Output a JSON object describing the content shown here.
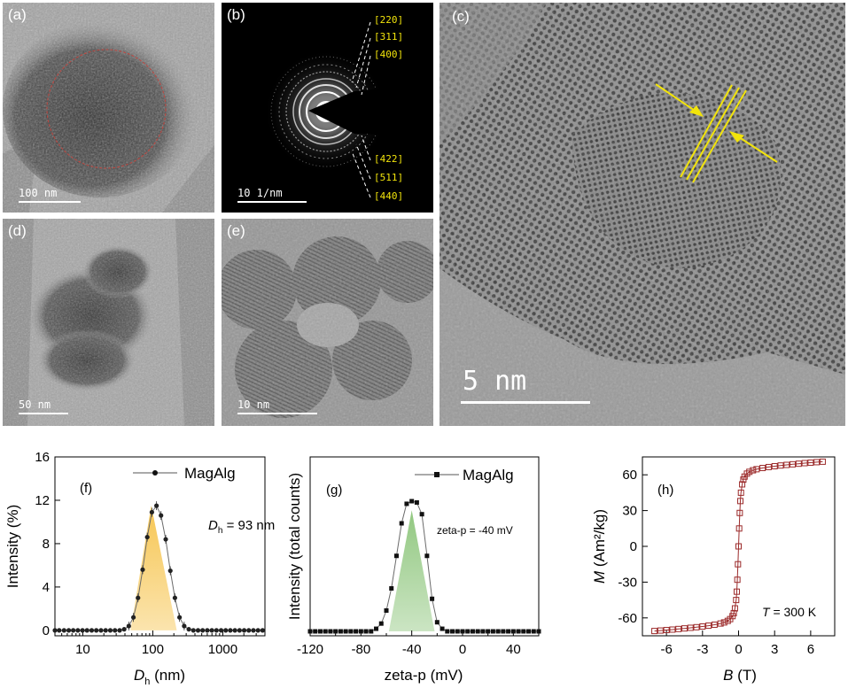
{
  "panels": {
    "a": {
      "label": "(a)",
      "scale": "100 nm"
    },
    "b": {
      "label": "(b)",
      "scale": "10 1/nm",
      "rings_top": [
        "[220]",
        "[311]",
        "[400]"
      ],
      "rings_bottom": [
        "[422]",
        "[511]",
        "[440]"
      ]
    },
    "c": {
      "label": "(c)",
      "scale": "5 nm"
    },
    "d": {
      "label": "(d)",
      "scale": "50 nm"
    },
    "e": {
      "label": "(e)",
      "scale": "10 nm"
    }
  },
  "colors": {
    "micro_bg": "#8a8a8a",
    "label_yellow": "#f2e40b",
    "f_fill": "#f6c34a",
    "g_fill": "#8cc57a",
    "h_marker": "#9b2a2a"
  },
  "chart_data": [
    {
      "id": "f",
      "type": "line",
      "label": "(f)",
      "legend": "MagAlg",
      "annotation_main": "D",
      "annotation_sub": "h",
      "annotation_rest": " = 93 nm",
      "xlabel_main": "D",
      "xlabel_sub": "h",
      "xlabel_rest": " (nm)",
      "ylabel": "Intensity (%)",
      "xscale": "log",
      "xlim": [
        4,
        4000
      ],
      "ylim": [
        -0.5,
        16
      ],
      "xticks": [
        10,
        100,
        1000
      ],
      "xtick_labels": [
        "10",
        "100",
        "1000"
      ],
      "yticks": [
        0,
        4,
        8,
        12,
        16
      ],
      "ytick_labels": [
        "0",
        "4",
        "8",
        "12",
        "16"
      ],
      "x": [
        4,
        4.6,
        5.4,
        6.3,
        7.3,
        8.5,
        9.9,
        11.5,
        13.4,
        15.6,
        18.2,
        21.2,
        24.7,
        28.8,
        33.6,
        39,
        45.4,
        52.9,
        61.5,
        71.6,
        83.3,
        97,
        113,
        131,
        153,
        178,
        207,
        241,
        281,
        327,
        380,
        443,
        515,
        600,
        698,
        812,
        946,
        1100,
        1280,
        1490,
        1735,
        2020,
        2350,
        2735,
        3185,
        3700
      ],
      "y": [
        0,
        0,
        0,
        0,
        0,
        0,
        0,
        0,
        0,
        0,
        0,
        0,
        0,
        0,
        0,
        0.1,
        0.4,
        1.2,
        3.0,
        5.6,
        8.6,
        10.9,
        11.5,
        10.6,
        8.4,
        5.5,
        3.0,
        1.2,
        0.4,
        0.1,
        0,
        0,
        0,
        0,
        0,
        0,
        0,
        0,
        0,
        0,
        0,
        0,
        0,
        0,
        0,
        0
      ],
      "fill_x": [
        48,
        220
      ],
      "fill_peak": [
        95,
        11.5
      ]
    },
    {
      "id": "g",
      "type": "line",
      "label": "(g)",
      "legend": "MagAlg",
      "annotation": "zeta-p = -40 mV",
      "xlabel": "zeta-p (mV)",
      "ylabel": "Intensity (total counts)",
      "xlim": [
        -120,
        60
      ],
      "ylim": [
        0,
        1
      ],
      "xticks": [
        -120,
        -80,
        -40,
        0,
        40
      ],
      "xtick_labels": [
        "-120",
        "-80",
        "-40",
        "0",
        "40"
      ],
      "x": [
        -120,
        -116,
        -112,
        -108,
        -104,
        -100,
        -96,
        -92,
        -88,
        -84,
        -80,
        -76,
        -72,
        -68,
        -64,
        -60,
        -56,
        -52,
        -48,
        -44,
        -40,
        -36,
        -32,
        -28,
        -24,
        -20,
        -16,
        -12,
        -8,
        -4,
        0,
        4,
        8,
        12,
        16,
        20,
        24,
        28,
        32,
        36,
        40,
        44,
        48,
        52,
        56,
        60
      ],
      "y": [
        0,
        0,
        0,
        0,
        0,
        0,
        0,
        0,
        0,
        0,
        0,
        0,
        0,
        0.02,
        0.06,
        0.16,
        0.33,
        0.58,
        0.83,
        0.98,
        1.0,
        0.99,
        0.9,
        0.58,
        0.25,
        0.07,
        0.02,
        0,
        0,
        0,
        0,
        0,
        0,
        0,
        0,
        0,
        0,
        0,
        0,
        0,
        0,
        0,
        0,
        0,
        0,
        0
      ],
      "fill_x": [
        -58,
        -22
      ],
      "fill_peak": [
        -40,
        0.93
      ]
    },
    {
      "id": "h",
      "type": "scatter",
      "label": "(h)",
      "annotation_main": "T",
      "annotation_rest": " = 300 K",
      "xlabel_main": "B",
      "xlabel_rest": " (T)",
      "ylabel_main": "M",
      "ylabel_rest": " (Am²/kg)",
      "xlim": [
        -8,
        8
      ],
      "ylim": [
        -75,
        75
      ],
      "xticks": [
        -6,
        -3,
        0,
        3,
        6
      ],
      "xtick_labels": [
        "-6",
        "-3",
        "0",
        "3",
        "6"
      ],
      "yticks": [
        -60,
        -30,
        0,
        30,
        60
      ],
      "ytick_labels": [
        "-60",
        "-30",
        "0",
        "30",
        "60"
      ],
      "x": [
        -7,
        -6.5,
        -6,
        -5.5,
        -5,
        -4.5,
        -4,
        -3.5,
        -3,
        -2.5,
        -2,
        -1.5,
        -1.2,
        -0.9,
        -0.7,
        -0.5,
        -0.4,
        -0.3,
        -0.2,
        -0.15,
        -0.1,
        -0.05,
        0,
        0.05,
        0.1,
        0.15,
        0.2,
        0.3,
        0.4,
        0.5,
        0.7,
        0.9,
        1.2,
        1.5,
        2,
        2.5,
        3,
        3.5,
        4,
        4.5,
        5,
        5.5,
        6,
        6.5,
        7
      ],
      "y": [
        -71,
        -70.6,
        -70.2,
        -69.8,
        -69.3,
        -68.8,
        -68.3,
        -67.8,
        -67.2,
        -66.5,
        -65.7,
        -64.7,
        -63.8,
        -62.5,
        -61,
        -58.5,
        -56,
        -52,
        -45,
        -38,
        -28,
        -15,
        0,
        15,
        28,
        38,
        45,
        52,
        56,
        58.5,
        61,
        62.5,
        63.8,
        64.7,
        65.7,
        66.5,
        67.2,
        67.8,
        68.3,
        68.8,
        69.3,
        69.8,
        70.2,
        70.6,
        71
      ]
    }
  ]
}
